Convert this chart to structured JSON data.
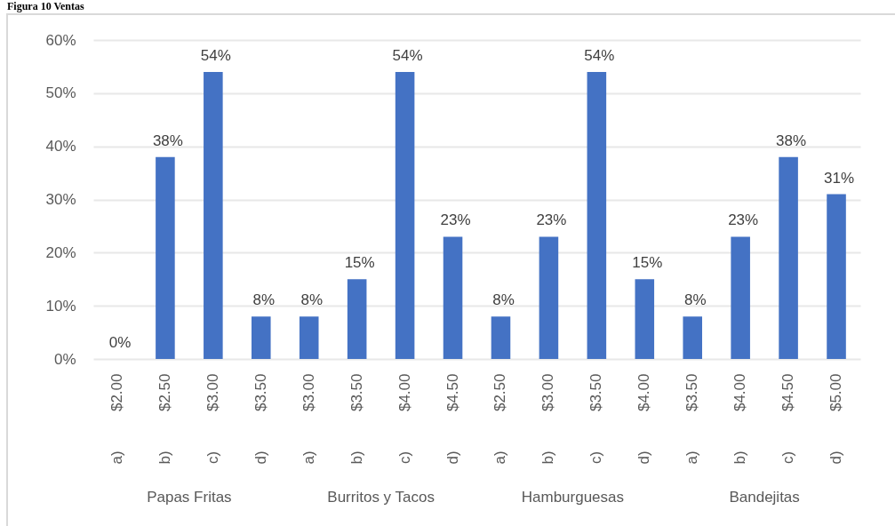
{
  "chart_data": {
    "type": "bar",
    "title": "Figura 10 Ventas",
    "categories": [
      "$2.00",
      "$2.50",
      "$3.00",
      "$3.50",
      "$3.00",
      "$3.50",
      "$4.00",
      "$4.50",
      "$2.50",
      "$3.00",
      "$3.50",
      "$4.00",
      "$3.50",
      "$4.00",
      "$4.50",
      "$5.00"
    ],
    "values": [
      0,
      38,
      54,
      8,
      8,
      15,
      54,
      23,
      8,
      23,
      54,
      15,
      8,
      23,
      38,
      31
    ],
    "value_labels": [
      "0%",
      "38%",
      "54%",
      "8%",
      "8%",
      "15%",
      "54%",
      "23%",
      "8%",
      "23%",
      "54%",
      "15%",
      "8%",
      "23%",
      "38%",
      "31%"
    ],
    "color": "#4472c4",
    "ylim": [
      0,
      60
    ],
    "yticks": [
      {
        "value": 0,
        "label": "0%"
      },
      {
        "value": 10,
        "label": "10%"
      },
      {
        "value": 20,
        "label": "20%"
      },
      {
        "value": 30,
        "label": "30%"
      },
      {
        "value": 40,
        "label": "40%"
      },
      {
        "value": 50,
        "label": "50%"
      },
      {
        "value": 60,
        "label": "60%"
      }
    ],
    "grid": "y",
    "annotations": [
      "a)",
      "b)",
      "c)",
      "d)",
      "a)",
      "b)",
      "c)",
      "d)",
      "a)",
      "b)",
      "c)",
      "d)",
      "a)",
      "b)",
      "c)",
      "d)",
      "Papas Fritas",
      "Burritos y Tacos",
      "Hamburguesas",
      "Bandejitas"
    ]
  }
}
